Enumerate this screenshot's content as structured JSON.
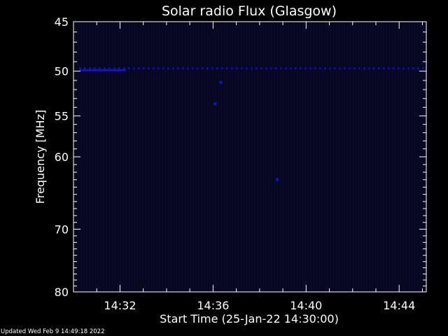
{
  "footer": "Updated Wed Feb  9 14:49:18 2022",
  "chart_data": {
    "type": "heatmap",
    "title": "Solar radio Flux (Glasgow)",
    "xlabel": "Start Time (25-Jan-22 14:30:00)",
    "ylabel": "Frequency [MHz]",
    "x_unit": "minutes",
    "xlim": [
      "14:30:00",
      "14:45:10"
    ],
    "ylim": [
      80,
      45
    ],
    "y_scale": "log",
    "x_ticks": [
      "14:32",
      "14:36",
      "14:40",
      "14:44"
    ],
    "y_ticks": [
      45,
      50,
      55,
      60,
      70,
      80
    ],
    "background_color": "#07071c",
    "intensity_color": "#1010e0",
    "bands": [
      {
        "freq_mhz": 49.7,
        "start": "14:30:15",
        "end": "14:45:10",
        "type": "dashed"
      },
      {
        "freq_mhz": 49.9,
        "start": "14:30:15",
        "end": "14:32:15",
        "type": "solid"
      }
    ],
    "points": [
      {
        "time": "14:36:20",
        "freq_mhz": 51.2
      },
      {
        "time": "14:36:05",
        "freq_mhz": 53.6
      },
      {
        "time": "14:38:45",
        "freq_mhz": 63.0
      }
    ],
    "grid": false
  }
}
